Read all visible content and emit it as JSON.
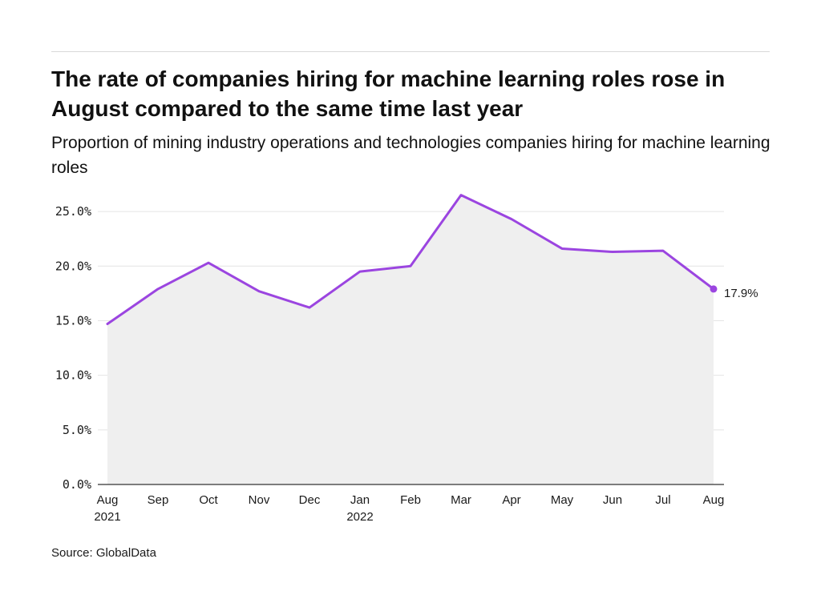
{
  "title": "The rate of companies hiring for machine learning roles rose in August compared to the same time last year",
  "subtitle": "Proportion of mining industry operations and technologies companies hiring for machine learning roles",
  "source": "Source: GlobalData",
  "colors": {
    "line": "#9b45e0",
    "area": "#efefef",
    "grid": "#e4e4e4",
    "axis": "#333333"
  },
  "chart_data": {
    "type": "area",
    "x": [
      "Aug 2021",
      "Sep 2021",
      "Oct 2021",
      "Nov 2021",
      "Dec 2021",
      "Jan 2022",
      "Feb 2022",
      "Mar 2022",
      "Apr 2022",
      "May 2022",
      "Jun 2022",
      "Jul 2022",
      "Aug 2022"
    ],
    "x_tick_labels": [
      {
        "month": "Aug",
        "year": "2021"
      },
      {
        "month": "Sep",
        "year": ""
      },
      {
        "month": "Oct",
        "year": ""
      },
      {
        "month": "Nov",
        "year": ""
      },
      {
        "month": "Dec",
        "year": ""
      },
      {
        "month": "Jan",
        "year": "2022"
      },
      {
        "month": "Feb",
        "year": ""
      },
      {
        "month": "Mar",
        "year": ""
      },
      {
        "month": "Apr",
        "year": ""
      },
      {
        "month": "May",
        "year": ""
      },
      {
        "month": "Jun",
        "year": ""
      },
      {
        "month": "Jul",
        "year": ""
      },
      {
        "month": "Aug",
        "year": ""
      }
    ],
    "series": [
      {
        "values": [
          14.7,
          17.9,
          20.3,
          17.7,
          16.2,
          19.5,
          20.0,
          26.5,
          24.3,
          21.6,
          21.3,
          21.4,
          17.9
        ]
      }
    ],
    "end_label": "17.9%",
    "y_ticks": [
      {
        "value": 0,
        "label": "0.0%"
      },
      {
        "value": 5,
        "label": "5.0%"
      },
      {
        "value": 10,
        "label": "10.0%"
      },
      {
        "value": 15,
        "label": "15.0%"
      },
      {
        "value": 20,
        "label": "20.0%"
      },
      {
        "value": 25,
        "label": "25.0%"
      }
    ],
    "ylim": [
      0,
      27.5
    ],
    "ylabel": "",
    "xlabel": "",
    "grid": true,
    "legend": "none"
  }
}
